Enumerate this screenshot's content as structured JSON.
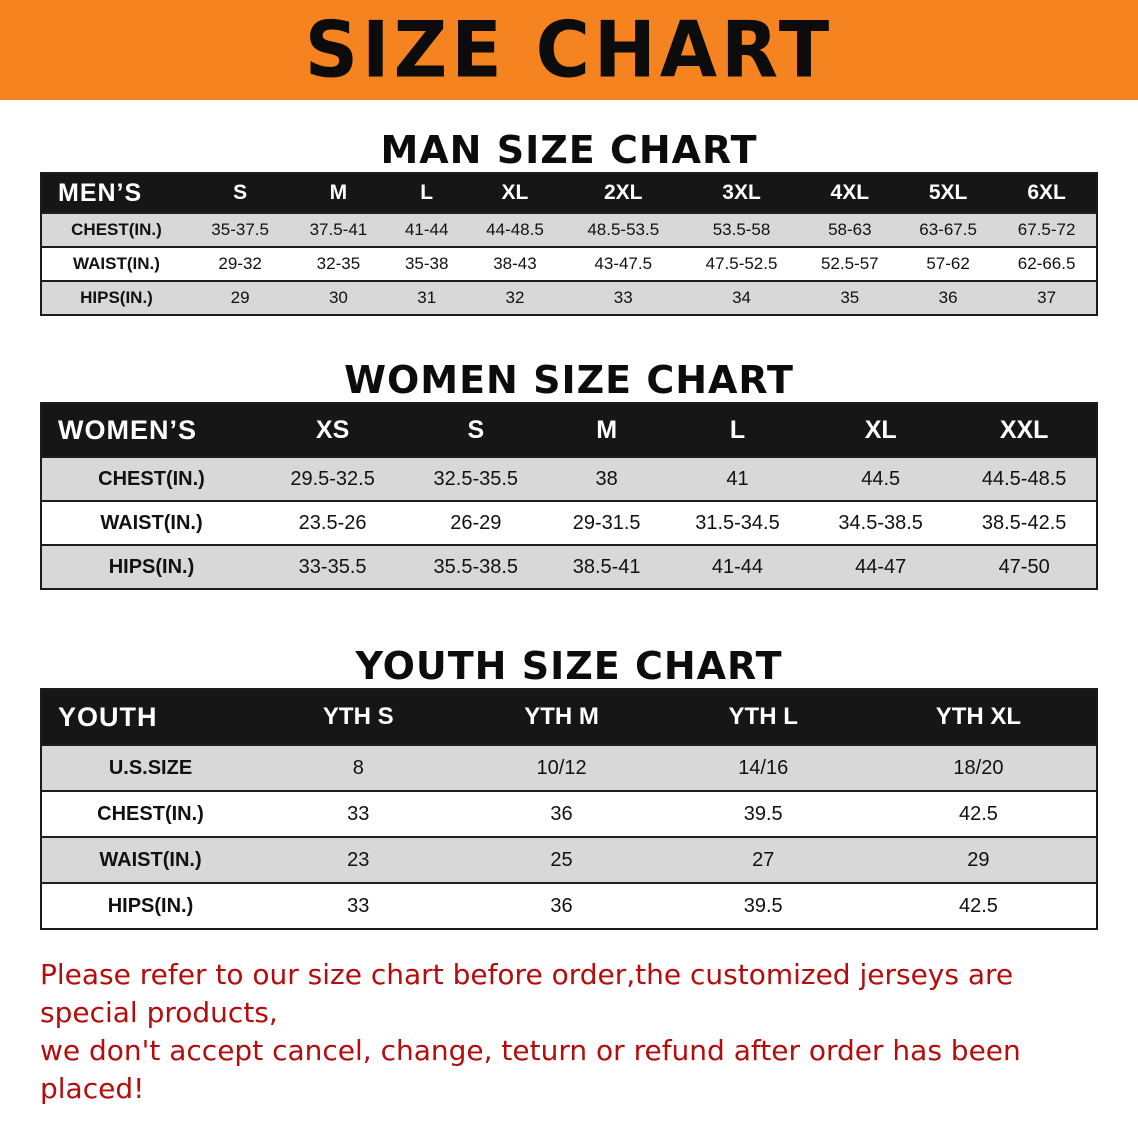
{
  "banner": {
    "title": "SIZE CHART"
  },
  "colors": {
    "banner_bg": "#f5831f",
    "header_bar_bg": "#161616",
    "shaded_row_bg": "#d8d8d8",
    "note_text": "#b50d0d"
  },
  "sections": [
    {
      "heading": "MAN SIZE CHART",
      "table": {
        "label": "MEN’S",
        "columns": [
          "S",
          "M",
          "L",
          "XL",
          "2XL",
          "3XL",
          "4XL",
          "5XL",
          "6XL"
        ],
        "rows": [
          {
            "label": "CHEST(IN.)",
            "values": [
              "35-37.5",
              "37.5-41",
              "41-44",
              "44-48.5",
              "48.5-53.5",
              "53.5-58",
              "58-63",
              "63-67.5",
              "67.5-72"
            ]
          },
          {
            "label": "WAIST(IN.)",
            "values": [
              "29-32",
              "32-35",
              "35-38",
              "38-43",
              "43-47.5",
              "47.5-52.5",
              "52.5-57",
              "57-62",
              "62-66.5"
            ]
          },
          {
            "label": "HIPS(IN.)",
            "values": [
              "29",
              "30",
              "31",
              "32",
              "33",
              "34",
              "35",
              "36",
              "37"
            ]
          }
        ]
      }
    },
    {
      "heading": "WOMEN SIZE CHART",
      "table": {
        "label": "WOMEN’S",
        "columns": [
          "XS",
          "S",
          "M",
          "L",
          "XL",
          "XXL"
        ],
        "rows": [
          {
            "label": "CHEST(IN.)",
            "values": [
              "29.5-32.5",
              "32.5-35.5",
              "38",
              "41",
              "44.5",
              "44.5-48.5"
            ]
          },
          {
            "label": "WAIST(IN.)",
            "values": [
              "23.5-26",
              "26-29",
              "29-31.5",
              "31.5-34.5",
              "34.5-38.5",
              "38.5-42.5"
            ]
          },
          {
            "label": "HIPS(IN.)",
            "values": [
              "33-35.5",
              "35.5-38.5",
              "38.5-41",
              "41-44",
              "44-47",
              "47-50"
            ]
          }
        ]
      }
    },
    {
      "heading": "YOUTH SIZE CHART",
      "table": {
        "label": "YOUTH",
        "columns": [
          "YTH S",
          "YTH M",
          "YTH L",
          "YTH XL"
        ],
        "rows": [
          {
            "label": "U.S.SIZE",
            "values": [
              "8",
              "10/12",
              "14/16",
              "18/20"
            ]
          },
          {
            "label": "CHEST(IN.)",
            "values": [
              "33",
              "36",
              "39.5",
              "42.5"
            ]
          },
          {
            "label": "WAIST(IN.)",
            "values": [
              "23",
              "25",
              "27",
              "29"
            ]
          },
          {
            "label": "HIPS(IN.)",
            "values": [
              "33",
              "36",
              "39.5",
              "42.5"
            ]
          }
        ]
      }
    }
  ],
  "footer": {
    "line1": "Please refer to our size chart before order,the customized jerseys are special products,",
    "line2": "we don't accept cancel, change, teturn or refund after order has been placed!"
  }
}
